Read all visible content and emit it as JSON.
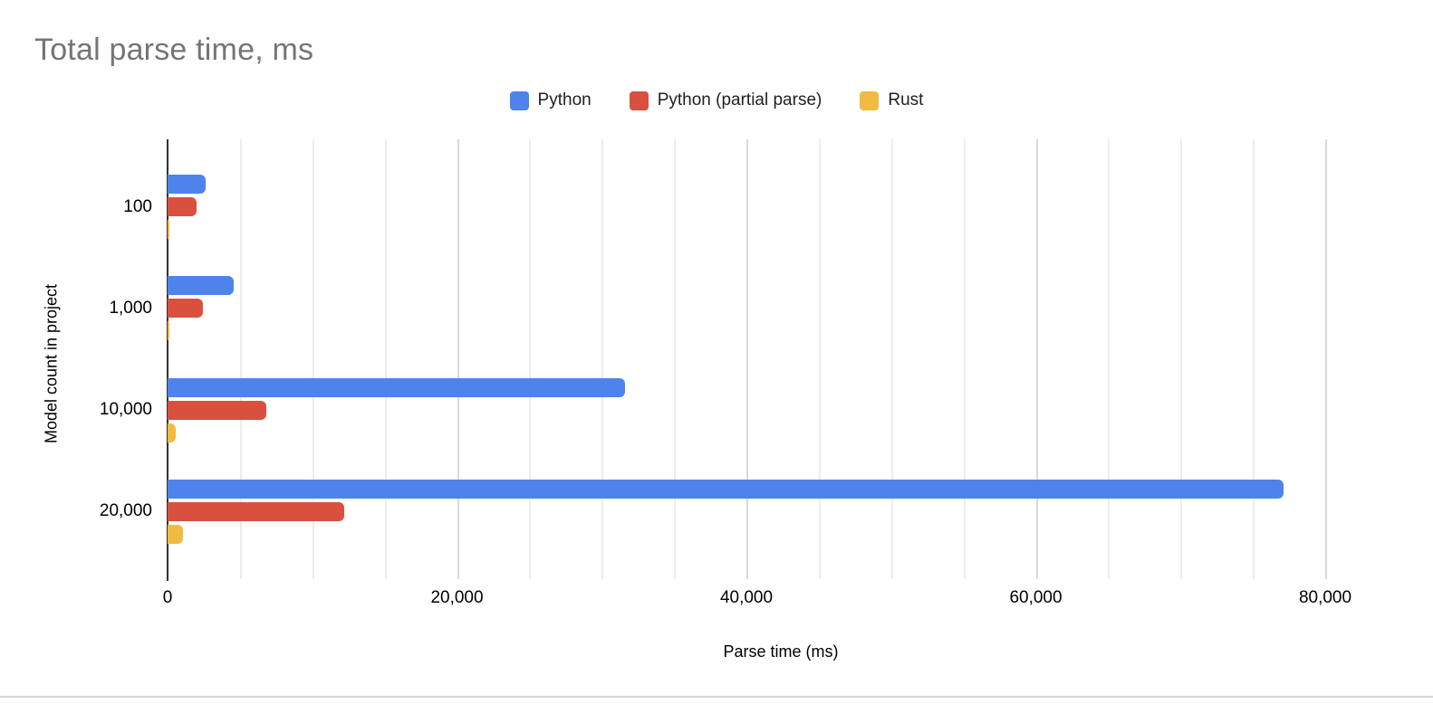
{
  "chart_data": {
    "type": "bar",
    "orientation": "horizontal",
    "title": "Total parse time, ms",
    "xlabel": "Parse time (ms)",
    "ylabel": "Model count in project",
    "categories": [
      "100",
      "1,000",
      "10,000",
      "20,000"
    ],
    "series": [
      {
        "name": "Python",
        "color": "#4E83EC",
        "values": [
          2600,
          4550,
          31600,
          77100
        ]
      },
      {
        "name": "Python (partial parse)",
        "color": "#D9503F",
        "values": [
          2000,
          2450,
          6800,
          12200
        ]
      },
      {
        "name": "Rust",
        "color": "#F1BA40",
        "values": [
          100,
          150,
          550,
          1050
        ]
      }
    ],
    "xlim": [
      0,
      85000
    ],
    "x_ticks": [
      0,
      20000,
      40000,
      60000,
      80000
    ],
    "x_tick_labels": [
      "0",
      "20,000",
      "40,000",
      "60,000",
      "80,000"
    ],
    "minor_grid_step": 5000,
    "major_grid_step": 20000,
    "grid": true,
    "legend_position": "top",
    "colors": {
      "title_text": "#757575",
      "axis_text": "#000000",
      "zero_line": "#333333",
      "minor_gridline": "#ececec",
      "major_gridline": "#d9d9d9"
    }
  }
}
